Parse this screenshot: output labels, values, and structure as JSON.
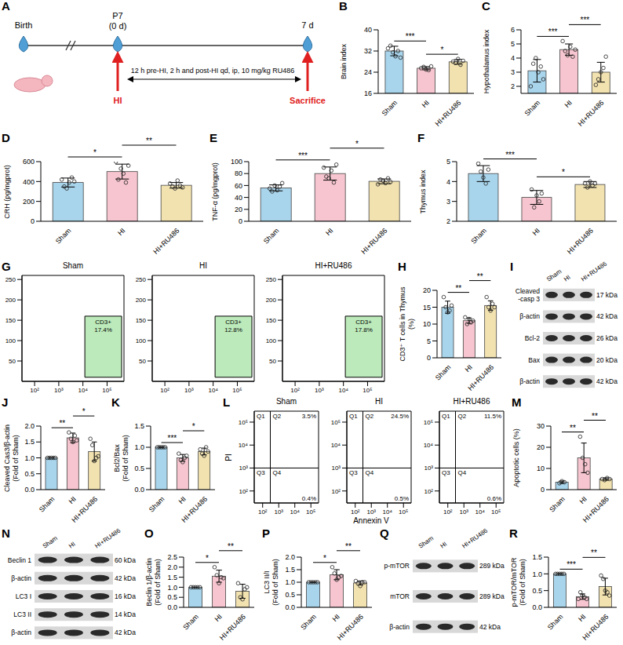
{
  "timeline": {
    "panel": "A",
    "start_label": "Birth",
    "day_label": "P7",
    "day_offset": "(0 d)",
    "end_label": "7 d",
    "event": "HI",
    "end_event": "Sacrifice",
    "treatment": "12 h pre-HI, 2 h and post-HI qd, ip, 10 mg/kg RU486"
  },
  "chart_data": [
    {
      "panel": "B",
      "type": "bar",
      "categories": [
        "Sham",
        "HI",
        "HI+RU486"
      ],
      "values": [
        32,
        25.5,
        27.9
      ],
      "error": [
        1.8,
        0.6,
        0.9
      ],
      "points": [
        [
          33,
          34,
          31.5,
          30,
          32,
          29.5
        ],
        [
          25.5,
          26,
          25,
          24.8,
          26.2
        ],
        [
          28,
          27.5,
          29,
          26.8,
          28.3
        ]
      ],
      "colors": [
        "#a9d5ec",
        "#f6c5cf",
        "#f2e2b0"
      ],
      "ylabel": "Brain index",
      "ylim": [
        16,
        40
      ],
      "yticks": [
        16,
        24,
        32,
        40
      ],
      "annotations": [
        {
          "from": "Sham",
          "to": "HI",
          "label": "***"
        },
        {
          "from": "HI",
          "to": "HI+RU486",
          "label": "*"
        }
      ]
    },
    {
      "panel": "C",
      "type": "bar",
      "categories": [
        "Sham",
        "HI",
        "HI+RU486"
      ],
      "values": [
        3.1,
        4.6,
        3.0
      ],
      "error": [
        0.8,
        0.4,
        0.7
      ],
      "points": [
        [
          2.0,
          3.6,
          4.0,
          3.0,
          3.4,
          2.5
        ],
        [
          5.2,
          4.5,
          4.2,
          4.8,
          4.1,
          4.6
        ],
        [
          2.1,
          2.5,
          3.0,
          3.3,
          4.1
        ]
      ],
      "colors": [
        "#a9d5ec",
        "#f6c5cf",
        "#f2e2b0"
      ],
      "ylabel": "Hypothalamus index",
      "ylim": [
        1.5,
        6
      ],
      "yticks": [
        2,
        3,
        4,
        5,
        6
      ],
      "annotations": [
        {
          "from": "Sham",
          "to": "HI",
          "label": "***"
        },
        {
          "from": "HI",
          "to": "HI+RU486",
          "label": "***"
        }
      ]
    },
    {
      "panel": "D",
      "type": "bar",
      "categories": [
        "Sham",
        "HI",
        "HI+RU486"
      ],
      "values": [
        390,
        500,
        362
      ],
      "error": [
        45,
        75,
        28
      ],
      "points": [
        [
          420,
          350,
          330,
          390,
          440,
          400
        ],
        [
          600,
          420,
          530,
          480,
          390,
          560
        ],
        [
          380,
          350,
          330,
          410,
          360,
          340
        ]
      ],
      "colors": [
        "#a9d5ec",
        "#f6c5cf",
        "#f2e2b0"
      ],
      "ylabel": "CRH (pg/mgprot)",
      "ylim": [
        0,
        600
      ],
      "yticks": [
        0,
        200,
        400,
        600
      ],
      "annotations": [
        {
          "from": "Sham",
          "to": "HI",
          "label": "*"
        },
        {
          "from": "HI",
          "to": "HI+RU486",
          "label": "**"
        }
      ]
    },
    {
      "panel": "E",
      "type": "bar",
      "categories": [
        "Sham",
        "HI",
        "HI+RU486"
      ],
      "values": [
        56,
        80,
        67
      ],
      "error": [
        5,
        11,
        4
      ],
      "points": [
        [
          55,
          50,
          60,
          52,
          58,
          64
        ],
        [
          90,
          75,
          72,
          85,
          65,
          95
        ],
        [
          62,
          70,
          68,
          64,
          72,
          66
        ]
      ],
      "colors": [
        "#a9d5ec",
        "#f6c5cf",
        "#f2e2b0"
      ],
      "ylabel": "TNF-α (pg/mgprot)",
      "ylim": [
        0,
        100
      ],
      "yticks": [
        0,
        20,
        40,
        60,
        80,
        100
      ],
      "annotations": [
        {
          "from": "Sham",
          "to": "HI",
          "label": "***"
        },
        {
          "from": "HI",
          "to": "HI+RU486",
          "label": "*"
        }
      ]
    },
    {
      "panel": "F",
      "type": "bar",
      "categories": [
        "Sham",
        "HI",
        "HI+RU486"
      ],
      "values": [
        4.4,
        3.2,
        3.85
      ],
      "error": [
        0.4,
        0.35,
        0.15
      ],
      "points": [
        [
          4.9,
          4.5,
          4.2,
          3.9,
          4.6
        ],
        [
          3.6,
          2.7,
          3.3,
          3.0,
          3.4
        ],
        [
          3.9,
          3.7,
          4.0,
          3.8,
          3.9
        ]
      ],
      "colors": [
        "#a9d5ec",
        "#f6c5cf",
        "#f2e2b0"
      ],
      "ylabel": "Thymus index",
      "ylim": [
        2,
        5
      ],
      "yticks": [
        2,
        3,
        4,
        5
      ],
      "annotations": [
        {
          "from": "Sham",
          "to": "HI",
          "label": "***"
        },
        {
          "from": "HI",
          "to": "HI+RU486",
          "label": "*"
        }
      ]
    },
    {
      "panel": "G",
      "type": "scatter",
      "log": "x",
      "xlim": [
        30,
        500000
      ],
      "ylim": [
        0,
        260
      ],
      "xticks": [
        {
          "value": 100,
          "label": "10²"
        },
        {
          "value": 1000,
          "label": "10³"
        },
        {
          "value": 10000,
          "label": "10⁴"
        },
        {
          "value": 100000,
          "label": "10⁵"
        }
      ],
      "yticks": [
        50,
        100,
        150,
        200,
        250
      ],
      "gate": {
        "x": [
          12000,
          400000
        ],
        "y": [
          10,
          160
        ]
      },
      "subplots": [
        {
          "title": "Sham",
          "gate_label": "CD3+",
          "percent": "17.4%"
        },
        {
          "title": "HI",
          "gate_label": "CD3+",
          "percent": "12.8%"
        },
        {
          "title": "HI+RU486",
          "gate_label": "CD3+",
          "percent": "17.8%"
        }
      ]
    },
    {
      "panel": "H",
      "type": "bar",
      "categories": [
        "Sham",
        "HI",
        "HI+RU486"
      ],
      "values": [
        15,
        11,
        15.5
      ],
      "error": [
        1.8,
        0.8,
        1.4
      ],
      "points": [
        [
          18,
          15,
          13.5,
          14,
          15.5
        ],
        [
          12,
          10,
          11.5,
          10.5,
          11
        ],
        [
          18,
          15,
          14,
          16,
          15
        ]
      ],
      "colors": [
        "#a9d5ec",
        "#f6c5cf",
        "#f2e2b0"
      ],
      "ylabel": "CD3⁺ T cells in Thymus (%)",
      "ylim": [
        0,
        20
      ],
      "yticks": [
        0,
        5,
        10,
        15,
        20
      ],
      "annotations": [
        {
          "from": "Sham",
          "to": "HI",
          "label": "**"
        },
        {
          "from": "HI",
          "to": "HI+RU486",
          "label": "**"
        }
      ]
    },
    {
      "panel": "J",
      "type": "bar",
      "categories": [
        "Sham",
        "HI",
        "HI+RU486"
      ],
      "values": [
        1,
        1.63,
        1.2
      ],
      "error": [
        0,
        0.15,
        0.3
      ],
      "points": [
        [
          1,
          1,
          1,
          1,
          1
        ],
        [
          1.8,
          1.6,
          1.5,
          1.7,
          1.55
        ],
        [
          1.6,
          1.4,
          0.9,
          1.0,
          1.05
        ]
      ],
      "colors": [
        "#a9d5ec",
        "#f6c5cf",
        "#f2e2b0"
      ],
      "ylabel": "Cleaved Cas3/β-actin (Fold of Sham)",
      "ylim": [
        0,
        2
      ],
      "yticks": [
        {
          "value": 0,
          "label": "0.0"
        },
        0.5,
        {
          "value": 1,
          "label": "1.0"
        },
        1.5,
        {
          "value": 2,
          "label": "2.0"
        }
      ],
      "annotations": [
        {
          "from": "Sham",
          "to": "HI",
          "label": "**"
        },
        {
          "from": "HI",
          "to": "HI+RU486",
          "label": "*"
        }
      ]
    },
    {
      "panel": "K",
      "type": "bar",
      "categories": [
        "Sham",
        "HI",
        "HI+RU486"
      ],
      "values": [
        1,
        0.75,
        0.9
      ],
      "error": [
        0,
        0.08,
        0.08
      ],
      "points": [
        [
          1,
          1,
          1,
          1,
          1
        ],
        [
          0.85,
          0.7,
          0.65,
          0.75,
          0.8
        ],
        [
          0.95,
          0.85,
          0.8,
          1.0,
          0.9
        ]
      ],
      "colors": [
        "#a9d5ec",
        "#f6c5cf",
        "#f2e2b0"
      ],
      "ylabel": "Bcl2/Bax (Fold of Sham)",
      "ylim": [
        0,
        1.5
      ],
      "yticks": [
        {
          "value": 0,
          "label": "0.0"
        },
        0.5,
        {
          "value": 1,
          "label": "1.0"
        },
        1.5
      ],
      "annotations": [
        {
          "from": "Sham",
          "to": "HI",
          "label": "***"
        },
        {
          "from": "HI",
          "to": "HI+RU486",
          "label": "*"
        }
      ]
    },
    {
      "panel": "L",
      "type": "scatter",
      "log": true,
      "xlabel": "Annexin V",
      "ylabel": "PI",
      "xlim": [
        30,
        300000
      ],
      "ylim": [
        30,
        300000
      ],
      "xticks": [
        {
          "value": 100,
          "label": "10²"
        },
        {
          "value": 1000,
          "label": "10³"
        },
        {
          "value": 10000,
          "label": "10⁴"
        },
        {
          "value": 100000,
          "label": "10⁵"
        }
      ],
      "yticks": [
        {
          "value": 100,
          "label": "10²"
        },
        {
          "value": 1000,
          "label": "10³"
        },
        {
          "value": 10000,
          "label": "10⁴"
        },
        {
          "value": 100000,
          "label": "10⁵"
        }
      ],
      "threshold": {
        "x": 300,
        "y": 1000
      },
      "quadrants": [
        "Q1",
        "Q2",
        "Q3",
        "Q4"
      ],
      "subplots": [
        {
          "title": "Sham",
          "upper_right": "3.5%",
          "lower_right": "0.4%"
        },
        {
          "title": "HI",
          "upper_right": "24.5%",
          "lower_right": "0.5%"
        },
        {
          "title": "HI+RU486",
          "upper_right": "11.5%",
          "lower_right": "0.6%"
        }
      ]
    },
    {
      "panel": "M",
      "type": "bar",
      "categories": [
        "Sham",
        "HI",
        "HI+RU486"
      ],
      "values": [
        3.5,
        15,
        5
      ],
      "error": [
        0.6,
        7,
        0.6
      ],
      "points": [
        [
          3,
          4,
          3.5
        ],
        [
          25,
          15,
          12,
          8
        ],
        [
          5,
          4.5,
          5.5,
          5
        ]
      ],
      "colors": [
        "#a9d5ec",
        "#f6c5cf",
        "#f2e2b0"
      ],
      "ylabel": "Apoptotic cells (%)",
      "ylim": [
        0,
        30
      ],
      "yticks": [
        0,
        10,
        20,
        30
      ],
      "annotations": [
        {
          "from": "Sham",
          "to": "HI",
          "label": "**"
        },
        {
          "from": "HI",
          "to": "HI+RU486",
          "label": "**"
        }
      ]
    },
    {
      "panel": "O",
      "type": "bar",
      "categories": [
        "Sham",
        "HI",
        "HI+RU486"
      ],
      "values": [
        1,
        1.55,
        0.8
      ],
      "error": [
        0,
        0.3,
        0.35
      ],
      "points": [
        [
          1,
          1,
          1,
          1,
          1
        ],
        [
          2.0,
          1.6,
          1.2,
          1.5,
          1.45
        ],
        [
          1.2,
          0.5,
          0.4,
          0.9,
          1.0
        ]
      ],
      "colors": [
        "#a9d5ec",
        "#f6c5cf",
        "#f2e2b0"
      ],
      "ylabel": "Beclin 1/β-actin (Fold of Sham)",
      "ylim": [
        0,
        2.5
      ],
      "yticks": [
        {
          "value": 0,
          "label": "0.0"
        },
        0.5,
        {
          "value": 1,
          "label": "1.0"
        },
        1.5,
        {
          "value": 2,
          "label": "2.0"
        },
        2.5
      ],
      "annotations": [
        {
          "from": "Sham",
          "to": "HI",
          "label": "*"
        },
        {
          "from": "HI",
          "to": "HI+RU486",
          "label": "**"
        }
      ]
    },
    {
      "panel": "P",
      "type": "bar",
      "categories": [
        "Sham",
        "HI",
        "HI+RU486"
      ],
      "values": [
        1,
        1.3,
        0.97
      ],
      "error": [
        0,
        0.2,
        0.08
      ],
      "points": [
        [
          1,
          1,
          1,
          1,
          1
        ],
        [
          1.6,
          1.35,
          1.1,
          1.2,
          1.25
        ],
        [
          1.05,
          0.95,
          0.85,
          1.0,
          1.0
        ]
      ],
      "colors": [
        "#a9d5ec",
        "#f6c5cf",
        "#f2e2b0"
      ],
      "ylabel": "LC3 II/I (Fold of Sham)",
      "ylim": [
        0,
        2
      ],
      "yticks": [
        {
          "value": 0,
          "label": "0.0"
        },
        0.5,
        {
          "value": 1,
          "label": "1.0"
        },
        1.5,
        {
          "value": 2,
          "label": "2.0"
        }
      ],
      "annotations": [
        {
          "from": "Sham",
          "to": "HI",
          "label": "*"
        },
        {
          "from": "HI",
          "to": "HI+RU486",
          "label": "**"
        }
      ]
    },
    {
      "panel": "R",
      "type": "bar",
      "categories": [
        "Sham",
        "HI",
        "HI+RU486"
      ],
      "values": [
        1,
        0.32,
        0.62
      ],
      "error": [
        0,
        0.08,
        0.25
      ],
      "points": [
        [
          1,
          1,
          1,
          1,
          1
        ],
        [
          0.25,
          0.45,
          0.35,
          0.3,
          0.25
        ],
        [
          0.95,
          0.85,
          0.5,
          0.45,
          0.35
        ]
      ],
      "colors": [
        "#a9d5ec",
        "#f6c5cf",
        "#f2e2b0"
      ],
      "ylabel": "p-mTOR/mTOR (Fold of Sham)",
      "ylim": [
        0,
        1.5
      ],
      "yticks": [
        {
          "value": 0,
          "label": "0.0"
        },
        0.5,
        {
          "value": 1,
          "label": "1.0"
        },
        1.5
      ],
      "annotations": [
        {
          "from": "Sham",
          "to": "HI",
          "label": "***"
        },
        {
          "from": "HI",
          "to": "HI+RU486",
          "label": "**"
        }
      ]
    }
  ],
  "blots": [
    {
      "panel": "I",
      "lanes": [
        "Sham",
        "HI",
        "HI+RU486"
      ],
      "rows": [
        {
          "label": "Cleaved -casp 3",
          "size": "17 kDa"
        },
        {
          "label": "β-actin",
          "size": "42 kDa"
        },
        {
          "label": "Bcl-2",
          "size": "26 kDa"
        },
        {
          "label": "Bax",
          "size": "20 kDa"
        },
        {
          "label": "β-actin",
          "size": "42 kDa"
        }
      ]
    },
    {
      "panel": "N",
      "lanes": [
        "Sham",
        "HI",
        "HI+RU486"
      ],
      "rows": [
        {
          "label": "Beclin 1",
          "size": "60 kDa"
        },
        {
          "label": "β-actin",
          "size": "42 kDa"
        },
        {
          "label": "LC3 I",
          "size": "16 kDa"
        },
        {
          "label": "LC3 II",
          "size": "14 kDa"
        },
        {
          "label": "β-actin",
          "size": "42 kDa"
        }
      ]
    },
    {
      "panel": "Q",
      "lanes": [
        "Sham",
        "HI",
        "HI+RU486"
      ],
      "rows": [
        {
          "label": "p-mTOR",
          "size": "289 kDa"
        },
        {
          "label": "mTOR",
          "size": "289 kDa"
        },
        {
          "label": "β-actin",
          "size": "42 kDa"
        }
      ]
    }
  ]
}
